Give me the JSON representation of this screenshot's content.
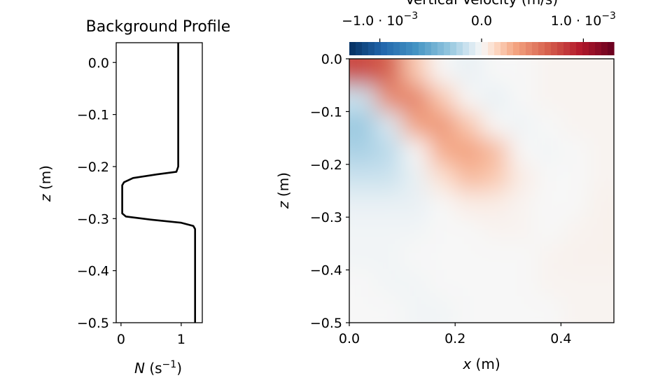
{
  "chart_data": [
    {
      "type": "line",
      "title": "Background Profile",
      "xlabel_var": "N",
      "xlabel_unit": "(s",
      "xlabel_exp": "−1",
      "xlabel_close": ")",
      "ylabel_var": "z",
      "ylabel_unit": " (m)",
      "xlim": [
        -0.08,
        1.35
      ],
      "ylim": [
        -0.5,
        0.038
      ],
      "xticks": [
        0,
        1
      ],
      "xtick_labels": [
        "0",
        "1"
      ],
      "yticks": [
        0.0,
        -0.1,
        -0.2,
        -0.3,
        -0.4,
        -0.5
      ],
      "ytick_labels": [
        "0.0",
        "−0.1",
        "−0.2",
        "−0.3",
        "−0.4",
        "−0.5"
      ],
      "grid": false,
      "series": [
        {
          "color": "#000000",
          "z": [
            0.038,
            -0.2,
            -0.21,
            -0.215,
            -0.222,
            -0.23,
            -0.236,
            -0.245,
            -0.29,
            -0.296,
            -0.302,
            -0.308,
            -0.314,
            -0.32,
            -0.5
          ],
          "N": [
            0.95,
            0.95,
            0.92,
            0.6,
            0.2,
            0.05,
            0.02,
            0.02,
            0.02,
            0.08,
            0.5,
            1.0,
            1.2,
            1.23,
            1.23
          ]
        }
      ]
    },
    {
      "type": "heatmap",
      "xlabel_var": "x",
      "xlabel_unit": " (m)",
      "ylabel_var": "z",
      "ylabel_unit": " (m)",
      "xlim": [
        0.0,
        0.5
      ],
      "ylim": [
        -0.5,
        0.0
      ],
      "xticks": [
        0.0,
        0.2,
        0.4
      ],
      "xtick_labels": [
        "0.0",
        "0.2",
        "0.4"
      ],
      "yticks": [
        0.0,
        -0.1,
        -0.2,
        -0.3,
        -0.4,
        -0.5
      ],
      "ytick_labels": [
        "0.0",
        "−0.1",
        "−0.2",
        "−0.3",
        "−0.4",
        "−0.5"
      ],
      "colormap": "RdBu_r",
      "colorbar": {
        "label": "Vertical Velocity (m/s)",
        "location": "top",
        "vmin": -0.0013,
        "vmax": 0.0013,
        "ticks": [
          -0.001,
          0.0,
          0.001
        ],
        "tick_labels": [
          "−1.0 · 10",
          "0.0",
          "1.0 · 10"
        ],
        "tick_exponents": [
          "−3",
          "",
          "−3"
        ]
      },
      "x_centers": [
        0.025,
        0.075,
        0.125,
        0.175,
        0.225,
        0.275,
        0.325,
        0.375,
        0.425,
        0.475
      ],
      "z_centers": [
        -0.025,
        -0.075,
        -0.125,
        -0.175,
        -0.225,
        -0.275,
        -0.325,
        -0.375,
        -0.425,
        -0.475
      ],
      "values_e3": [
        [
          0.75,
          0.65,
          0.2,
          0.0,
          -0.05,
          0.0,
          0.0,
          0.02,
          0.02,
          0.02
        ],
        [
          -0.15,
          0.45,
          0.5,
          0.2,
          0.0,
          -0.05,
          0.0,
          0.02,
          0.02,
          0.02
        ],
        [
          -0.3,
          -0.1,
          0.35,
          0.4,
          0.2,
          0.0,
          -0.03,
          0.0,
          0.02,
          0.02
        ],
        [
          -0.25,
          -0.2,
          0.0,
          0.3,
          0.35,
          0.25,
          0.0,
          -0.02,
          0.0,
          0.02
        ],
        [
          -0.15,
          -0.15,
          -0.05,
          0.1,
          0.25,
          0.2,
          0.05,
          0.0,
          0.0,
          0.02
        ],
        [
          -0.05,
          -0.05,
          -0.05,
          0.0,
          0.05,
          0.05,
          0.02,
          0.0,
          0.0,
          0.03
        ],
        [
          -0.02,
          -0.02,
          -0.02,
          0.0,
          0.0,
          0.02,
          0.02,
          0.0,
          0.02,
          0.03
        ],
        [
          -0.02,
          -0.02,
          0.0,
          0.0,
          0.0,
          0.0,
          0.0,
          0.02,
          0.03,
          0.03
        ],
        [
          0.0,
          -0.02,
          -0.02,
          0.0,
          0.0,
          0.0,
          0.0,
          0.02,
          0.02,
          0.02
        ],
        [
          0.0,
          0.0,
          -0.02,
          -0.02,
          0.0,
          0.0,
          0.0,
          0.0,
          0.02,
          0.02
        ]
      ]
    }
  ]
}
